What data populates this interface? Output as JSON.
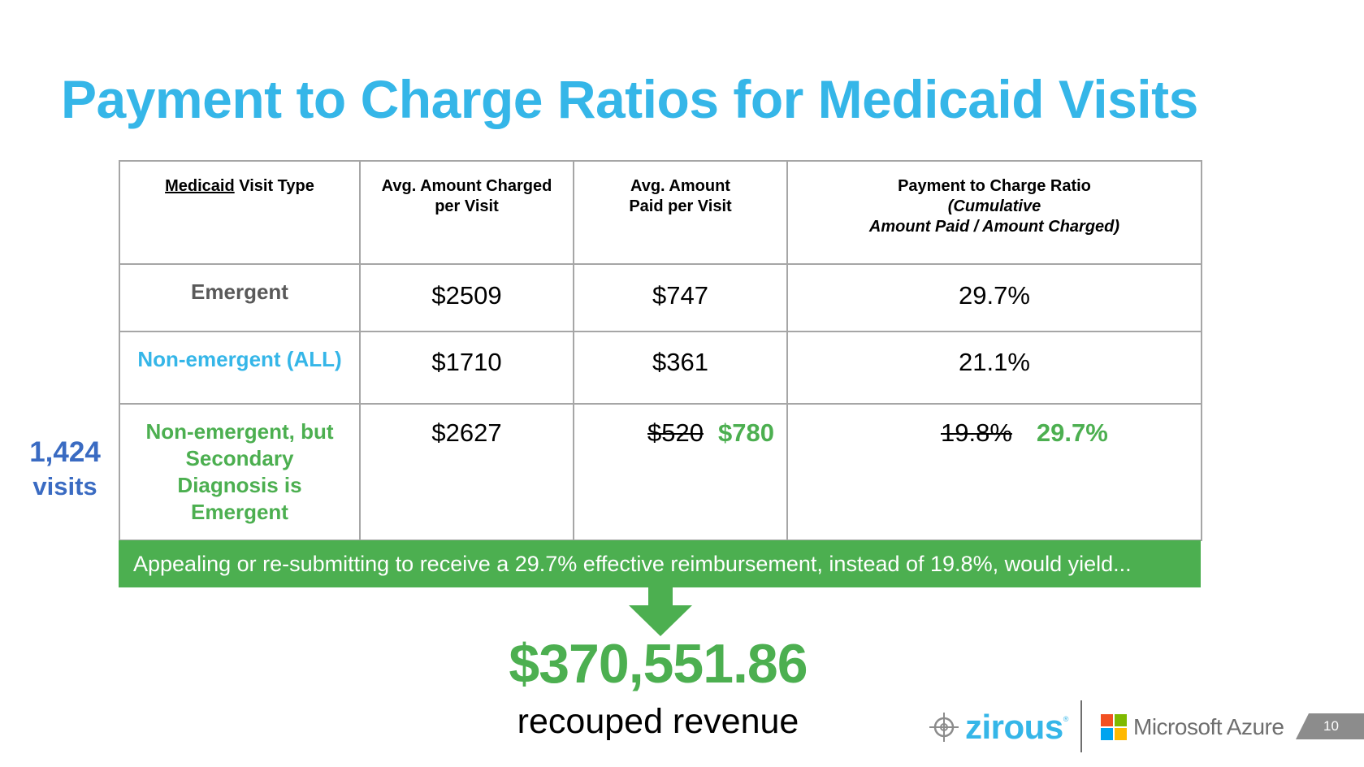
{
  "title": "Payment to Charge Ratios for Medicaid Visits",
  "table": {
    "headers": {
      "type_underlined": "Medicaid",
      "type_rest": " Visit Type",
      "charged_line1": "Avg. Amount Charged",
      "charged_line2": "per Visit",
      "paid_line1": "Avg. Amount",
      "paid_line2": "Paid per Visit",
      "ratio_line1": "Payment to Charge Ratio",
      "ratio_line2": "(Cumulative",
      "ratio_line3": "Amount Paid / Amount Charged)"
    },
    "rows": [
      {
        "type": "Emergent",
        "charged": "$2509",
        "paid": "$747",
        "ratio": "29.7%"
      },
      {
        "type": "Non-emergent (ALL)",
        "charged": "$1710",
        "paid": "$361",
        "ratio": "21.1%"
      },
      {
        "type_lines": [
          "Non-emergent, but",
          "Secondary",
          "Diagnosis is",
          "Emergent"
        ],
        "charged": "$2627",
        "paid_old": "$520",
        "paid_new": "$780",
        "ratio_old": "19.8%",
        "ratio_new": "29.7%"
      }
    ]
  },
  "visits": {
    "count": "1,424",
    "label": "visits"
  },
  "banner": "Appealing or re-submitting to receive a 29.7% effective reimbursement, instead of 19.8%, would yield...",
  "result": {
    "value": "$370,551.86",
    "caption": "recouped revenue"
  },
  "logos": {
    "zirous": "zirous",
    "zirous_mark": "®",
    "microsoft": "Microsoft Azure"
  },
  "page_number": "10",
  "colors": {
    "title": "#35b6e8",
    "green": "#4caf50",
    "visits_blue": "#3a6bc2",
    "emergent_grey": "#595959",
    "ms_red": "#f25022",
    "ms_green": "#7fba00",
    "ms_blue": "#00a4ef",
    "ms_yellow": "#ffb900"
  },
  "icons": {
    "arrow": "down-arrow-icon",
    "zirous_mark": "crosshair-icon",
    "ms_mark": "windows-grid-icon"
  }
}
